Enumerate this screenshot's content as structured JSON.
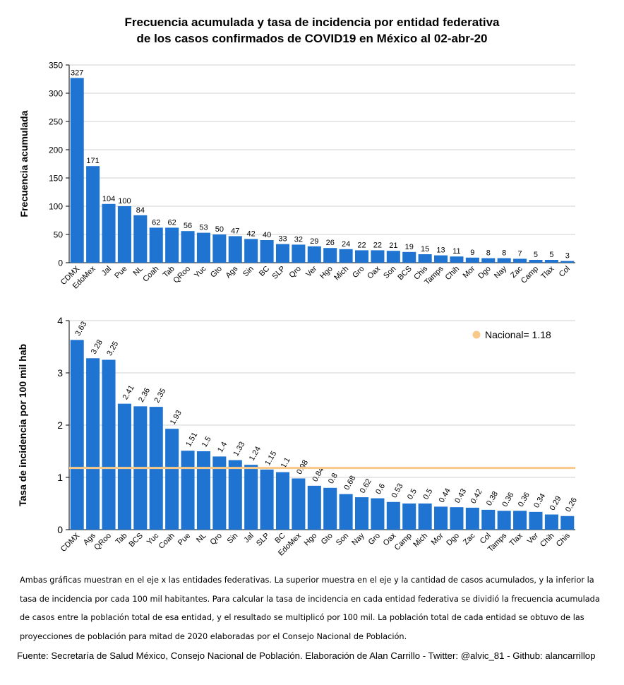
{
  "title_line1": "Frecuencia acumulada y tasa de incidencia por entidad federativa",
  "title_line2": "de los casos confirmados de COVID19 en México al 02-abr-20",
  "chart_data": [
    {
      "type": "bar",
      "ylabel": "Frecuencia acumulada",
      "ylim": [
        0,
        350
      ],
      "yticks": [
        0,
        50,
        100,
        150,
        200,
        250,
        300,
        350
      ],
      "grid": true,
      "bar_color": "#1f74d1",
      "categories": [
        "CDMX",
        "EdoMex",
        "Jal",
        "Pue",
        "NL",
        "Coah",
        "Tab",
        "QRoo",
        "Yuc",
        "Gto",
        "Ags",
        "Sin",
        "BC",
        "SLP",
        "Qro",
        "Ver",
        "Hgo",
        "Mich",
        "Gro",
        "Oax",
        "Son",
        "BCS",
        "Chis",
        "Tamps",
        "Chih",
        "Mor",
        "Dgo",
        "Nay",
        "Zac",
        "Camp",
        "Tlax",
        "Col"
      ],
      "values": [
        327,
        171,
        104,
        100,
        84,
        62,
        62,
        56,
        53,
        50,
        47,
        42,
        40,
        33,
        32,
        29,
        26,
        24,
        22,
        22,
        21,
        19,
        15,
        13,
        11,
        9,
        8,
        8,
        7,
        5,
        5,
        3
      ],
      "labels": [
        "327",
        "171",
        "104",
        "100",
        "84",
        "62",
        "62",
        "56",
        "53",
        "50",
        "47",
        "42",
        "40",
        "33",
        "32",
        "29",
        "26",
        "24",
        "22",
        "22",
        "21",
        "19",
        "15",
        "13",
        "11",
        "9",
        "8",
        "8",
        "7",
        "5",
        "5",
        "3"
      ]
    },
    {
      "type": "bar",
      "ylabel": "Tasa de incidencia por 100 mil hab",
      "ylim": [
        0,
        4
      ],
      "yticks": [
        0,
        1,
        2,
        3,
        4
      ],
      "grid": true,
      "bar_color": "#1f74d1",
      "reference_line": {
        "value": 1.18,
        "label": "Nacional= 1.18",
        "color": "#f9c98a"
      },
      "legend_position": "top-right",
      "categories": [
        "CDMX",
        "Ags",
        "QRoo",
        "Tab",
        "BCS",
        "Yuc",
        "Coah",
        "Pue",
        "NL",
        "Qro",
        "Sin",
        "Jal",
        "SLP",
        "BC",
        "EdoMex",
        "Hgo",
        "Gto",
        "Son",
        "Nay",
        "Gro",
        "Oax",
        "Camp",
        "Mich",
        "Mor",
        "Dgo",
        "Zac",
        "Col",
        "Tamps",
        "Tlax",
        "Ver",
        "Chih",
        "Chis"
      ],
      "values": [
        3.63,
        3.28,
        3.25,
        2.41,
        2.36,
        2.35,
        1.93,
        1.51,
        1.5,
        1.4,
        1.33,
        1.24,
        1.15,
        1.1,
        0.98,
        0.84,
        0.8,
        0.68,
        0.62,
        0.6,
        0.53,
        0.5,
        0.5,
        0.44,
        0.43,
        0.42,
        0.38,
        0.36,
        0.36,
        0.34,
        0.29,
        0.26
      ],
      "labels": [
        "3.63",
        "3.28",
        "3.25",
        "2.41",
        "2.36",
        "2.35",
        "1.93",
        "1.51",
        "1.5",
        "1.4",
        "1.33",
        "1.24",
        "1.15",
        "1.1",
        "0.98",
        "0.84",
        "0.8",
        "0.68",
        "0.62",
        "0.6",
        "0.53",
        "0.5",
        "0.5",
        "0.44",
        "0.43",
        "0.42",
        "0.38",
        "0.36",
        "0.36",
        "0.34",
        "0.29",
        "0.26"
      ]
    }
  ],
  "note": "Ambas gráficas muestran en el eje x las entidades federativas. La superior muestra en el eje y la cantidad de casos acumulados, y la inferior la tasa de incidencia por cada 100 mil habitantes. Para calcular la tasa de incidencia en cada entidad federativa se dividió la frecuencia acumulada de casos entre la población total de esa entidad, y el resultado se multiplicó por 100 mil. La población total de cada entidad se obtuvo de las proyecciones de población para mitad de 2020 elaboradas por el Consejo Nacional de Población.",
  "source": "Fuente: Secretaría de Salud México, Consejo Nacional de Población. Elaboración de Alan Carrillo - Twitter: @alvic_81 - Github: alancarrillop"
}
